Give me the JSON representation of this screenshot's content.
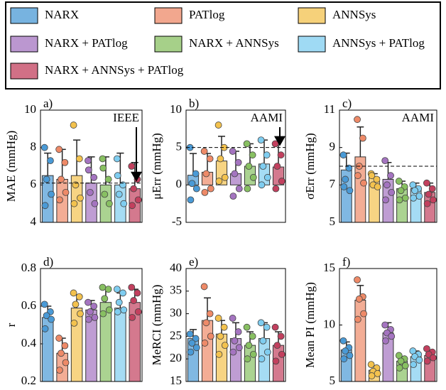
{
  "legend": {
    "series": [
      {
        "name": "NARX",
        "color": "#4a9ad6"
      },
      {
        "name": "PATlog",
        "color": "#ee8a68"
      },
      {
        "name": "ANNSys",
        "color": "#f3c24e"
      },
      {
        "name": "NARX + PATlog",
        "color": "#a474c0"
      },
      {
        "name": "NARX + ANNSys",
        "color": "#88c062"
      },
      {
        "name": "ANNSys + PATlog",
        "color": "#7fcdf0"
      },
      {
        "name": "NARX + ANNSys + PATlog",
        "color": "#c2405e"
      }
    ]
  },
  "chart_data": [
    {
      "type": "bar",
      "panel_label": "a)",
      "ylabel": "MAE (mmHg)",
      "ylim": [
        4,
        10
      ],
      "yticks": [
        4,
        6,
        8,
        10
      ],
      "reference_line": {
        "value": 6.1,
        "label": "IEEE"
      },
      "values": [
        6.5,
        6.3,
        6.5,
        6.1,
        6.0,
        6.0,
        5.8
      ],
      "errors": [
        1.2,
        1.6,
        1.9,
        1.4,
        1.5,
        1.7,
        1.4
      ],
      "points": [
        [
          8.0,
          7.3,
          6.3,
          5.5,
          4.9
        ],
        [
          7.9,
          7.2,
          6.3,
          5.6,
          5.2
        ],
        [
          9.2,
          7.4,
          6.0,
          5.3,
          5.0
        ],
        [
          7.3,
          6.4,
          5.6,
          5.0,
          6.8
        ],
        [
          7.4,
          6.3,
          5.5,
          5.0,
          6.9
        ],
        [
          7.4,
          6.0,
          5.5,
          5.0,
          6.5
        ],
        [
          7.0,
          6.3,
          5.8,
          5.2,
          4.9
        ]
      ]
    },
    {
      "type": "bar",
      "panel_label": "b)",
      "ylabel": "μErr (mmHg)",
      "ylim": [
        -5,
        10
      ],
      "yticks": [
        -5,
        0,
        5,
        10
      ],
      "reference_line": {
        "value": 5,
        "label": "AAMI"
      },
      "values": [
        1.3,
        1.7,
        3.2,
        1.5,
        2.5,
        2.8,
        2.4
      ],
      "errors": [
        2.9,
        2.5,
        3.3,
        3.0,
        3.0,
        3.2,
        3.4
      ],
      "points": [
        [
          5.0,
          1.5,
          0.2,
          -0.5,
          -2.0
        ],
        [
          4.5,
          3.5,
          1.5,
          -0.5,
          -1.0
        ],
        [
          8.0,
          5.0,
          3.5,
          1.0,
          0.5
        ],
        [
          4.5,
          3.0,
          1.5,
          -0.5,
          -1.5
        ],
        [
          5.5,
          4.0,
          2.5,
          1.0,
          -0.5
        ],
        [
          6.0,
          4.0,
          2.5,
          1.0,
          0.0
        ],
        [
          5.5,
          4.0,
          2.5,
          0.5,
          -0.5
        ]
      ]
    },
    {
      "type": "bar",
      "panel_label": "c)",
      "ylabel": "σErr (mmHg)",
      "ylim": [
        5,
        11
      ],
      "yticks": [
        5,
        7,
        9,
        11
      ],
      "reference_line": {
        "value": 8,
        "label": "AAMI"
      },
      "values": [
        7.8,
        8.5,
        7.4,
        7.3,
        6.8,
        6.8,
        6.6
      ],
      "errors": [
        0.9,
        1.6,
        0.2,
        0.9,
        0.4,
        0.3,
        0.5
      ],
      "points": [
        [
          8.6,
          7.9,
          7.3,
          6.7,
          6.9
        ],
        [
          10.5,
          9.5,
          8.0,
          7.1,
          7.5
        ],
        [
          7.6,
          7.3,
          7.0,
          6.9,
          7.5
        ],
        [
          8.3,
          7.5,
          7.0,
          6.6,
          6.2
        ],
        [
          7.2,
          6.9,
          6.7,
          6.3,
          6.2
        ],
        [
          7.0,
          6.8,
          6.7,
          6.4,
          6.3
        ],
        [
          7.1,
          6.8,
          6.5,
          6.2,
          6.0
        ]
      ]
    },
    {
      "type": "bar",
      "panel_label": "d)",
      "ylabel": "r",
      "ylim": [
        0.2,
        0.8
      ],
      "yticks": [
        0.2,
        0.4,
        0.6,
        0.8
      ],
      "values": [
        0.54,
        0.35,
        0.59,
        0.58,
        0.62,
        0.59,
        0.62
      ],
      "errors": [
        0.06,
        0.08,
        0.07,
        0.05,
        0.07,
        0.08,
        0.07
      ],
      "points": [
        [
          0.61,
          0.57,
          0.55,
          0.53,
          0.48
        ],
        [
          0.43,
          0.39,
          0.35,
          0.3,
          0.26
        ],
        [
          0.67,
          0.65,
          0.61,
          0.56,
          0.51
        ],
        [
          0.62,
          0.6,
          0.57,
          0.54,
          0.53
        ],
        [
          0.7,
          0.69,
          0.64,
          0.58,
          0.56
        ],
        [
          0.69,
          0.67,
          0.62,
          0.58,
          0.57
        ],
        [
          0.7,
          0.67,
          0.63,
          0.57,
          0.54
        ]
      ]
    },
    {
      "type": "bar",
      "panel_label": "e)",
      "ylabel": "MeRCI (mmHg)",
      "ylim": [
        15,
        40
      ],
      "yticks": [
        15,
        20,
        25,
        30,
        35,
        40
      ],
      "values": [
        24.5,
        28.5,
        25.5,
        24.5,
        23,
        24.5,
        23
      ],
      "errors": [
        2,
        5,
        3,
        3.5,
        3,
        3.5,
        3
      ],
      "points": [
        [
          25.5,
          24.5,
          23.5,
          22.5,
          21.5
        ],
        [
          36,
          30,
          28,
          25,
          23.5
        ],
        [
          29,
          27,
          25,
          23,
          21
        ],
        [
          29,
          26,
          24,
          22.5,
          21.5
        ],
        [
          27,
          25,
          23,
          21,
          20
        ],
        [
          28,
          27,
          24,
          21.5,
          20
        ],
        [
          27,
          25,
          23,
          21,
          19.5
        ]
      ]
    },
    {
      "type": "bar",
      "panel_label": "f)",
      "ylabel": "Mean PI (mmHg)",
      "ylim": [
        5,
        15
      ],
      "yticks": [
        5,
        10,
        15
      ],
      "values": [
        7.8,
        12.2,
        6.0,
        9.3,
        6.8,
        7.2,
        7.3
      ],
      "errors": [
        0.7,
        1.3,
        0.4,
        0.9,
        0.4,
        0.5,
        0.4
      ],
      "points": [
        [
          8.6,
          8.0,
          7.7,
          7.3,
          7.0
        ],
        [
          14.0,
          12.5,
          12.3,
          11.0,
          10.5
        ],
        [
          6.5,
          6.2,
          5.9,
          5.7,
          5.5
        ],
        [
          10.0,
          9.6,
          9.3,
          9.0,
          8.6
        ],
        [
          7.3,
          7.0,
          6.8,
          6.4,
          6.2
        ],
        [
          7.7,
          7.4,
          7.2,
          6.9,
          6.5
        ],
        [
          7.9,
          7.6,
          7.4,
          7.1,
          6.8
        ]
      ]
    }
  ]
}
